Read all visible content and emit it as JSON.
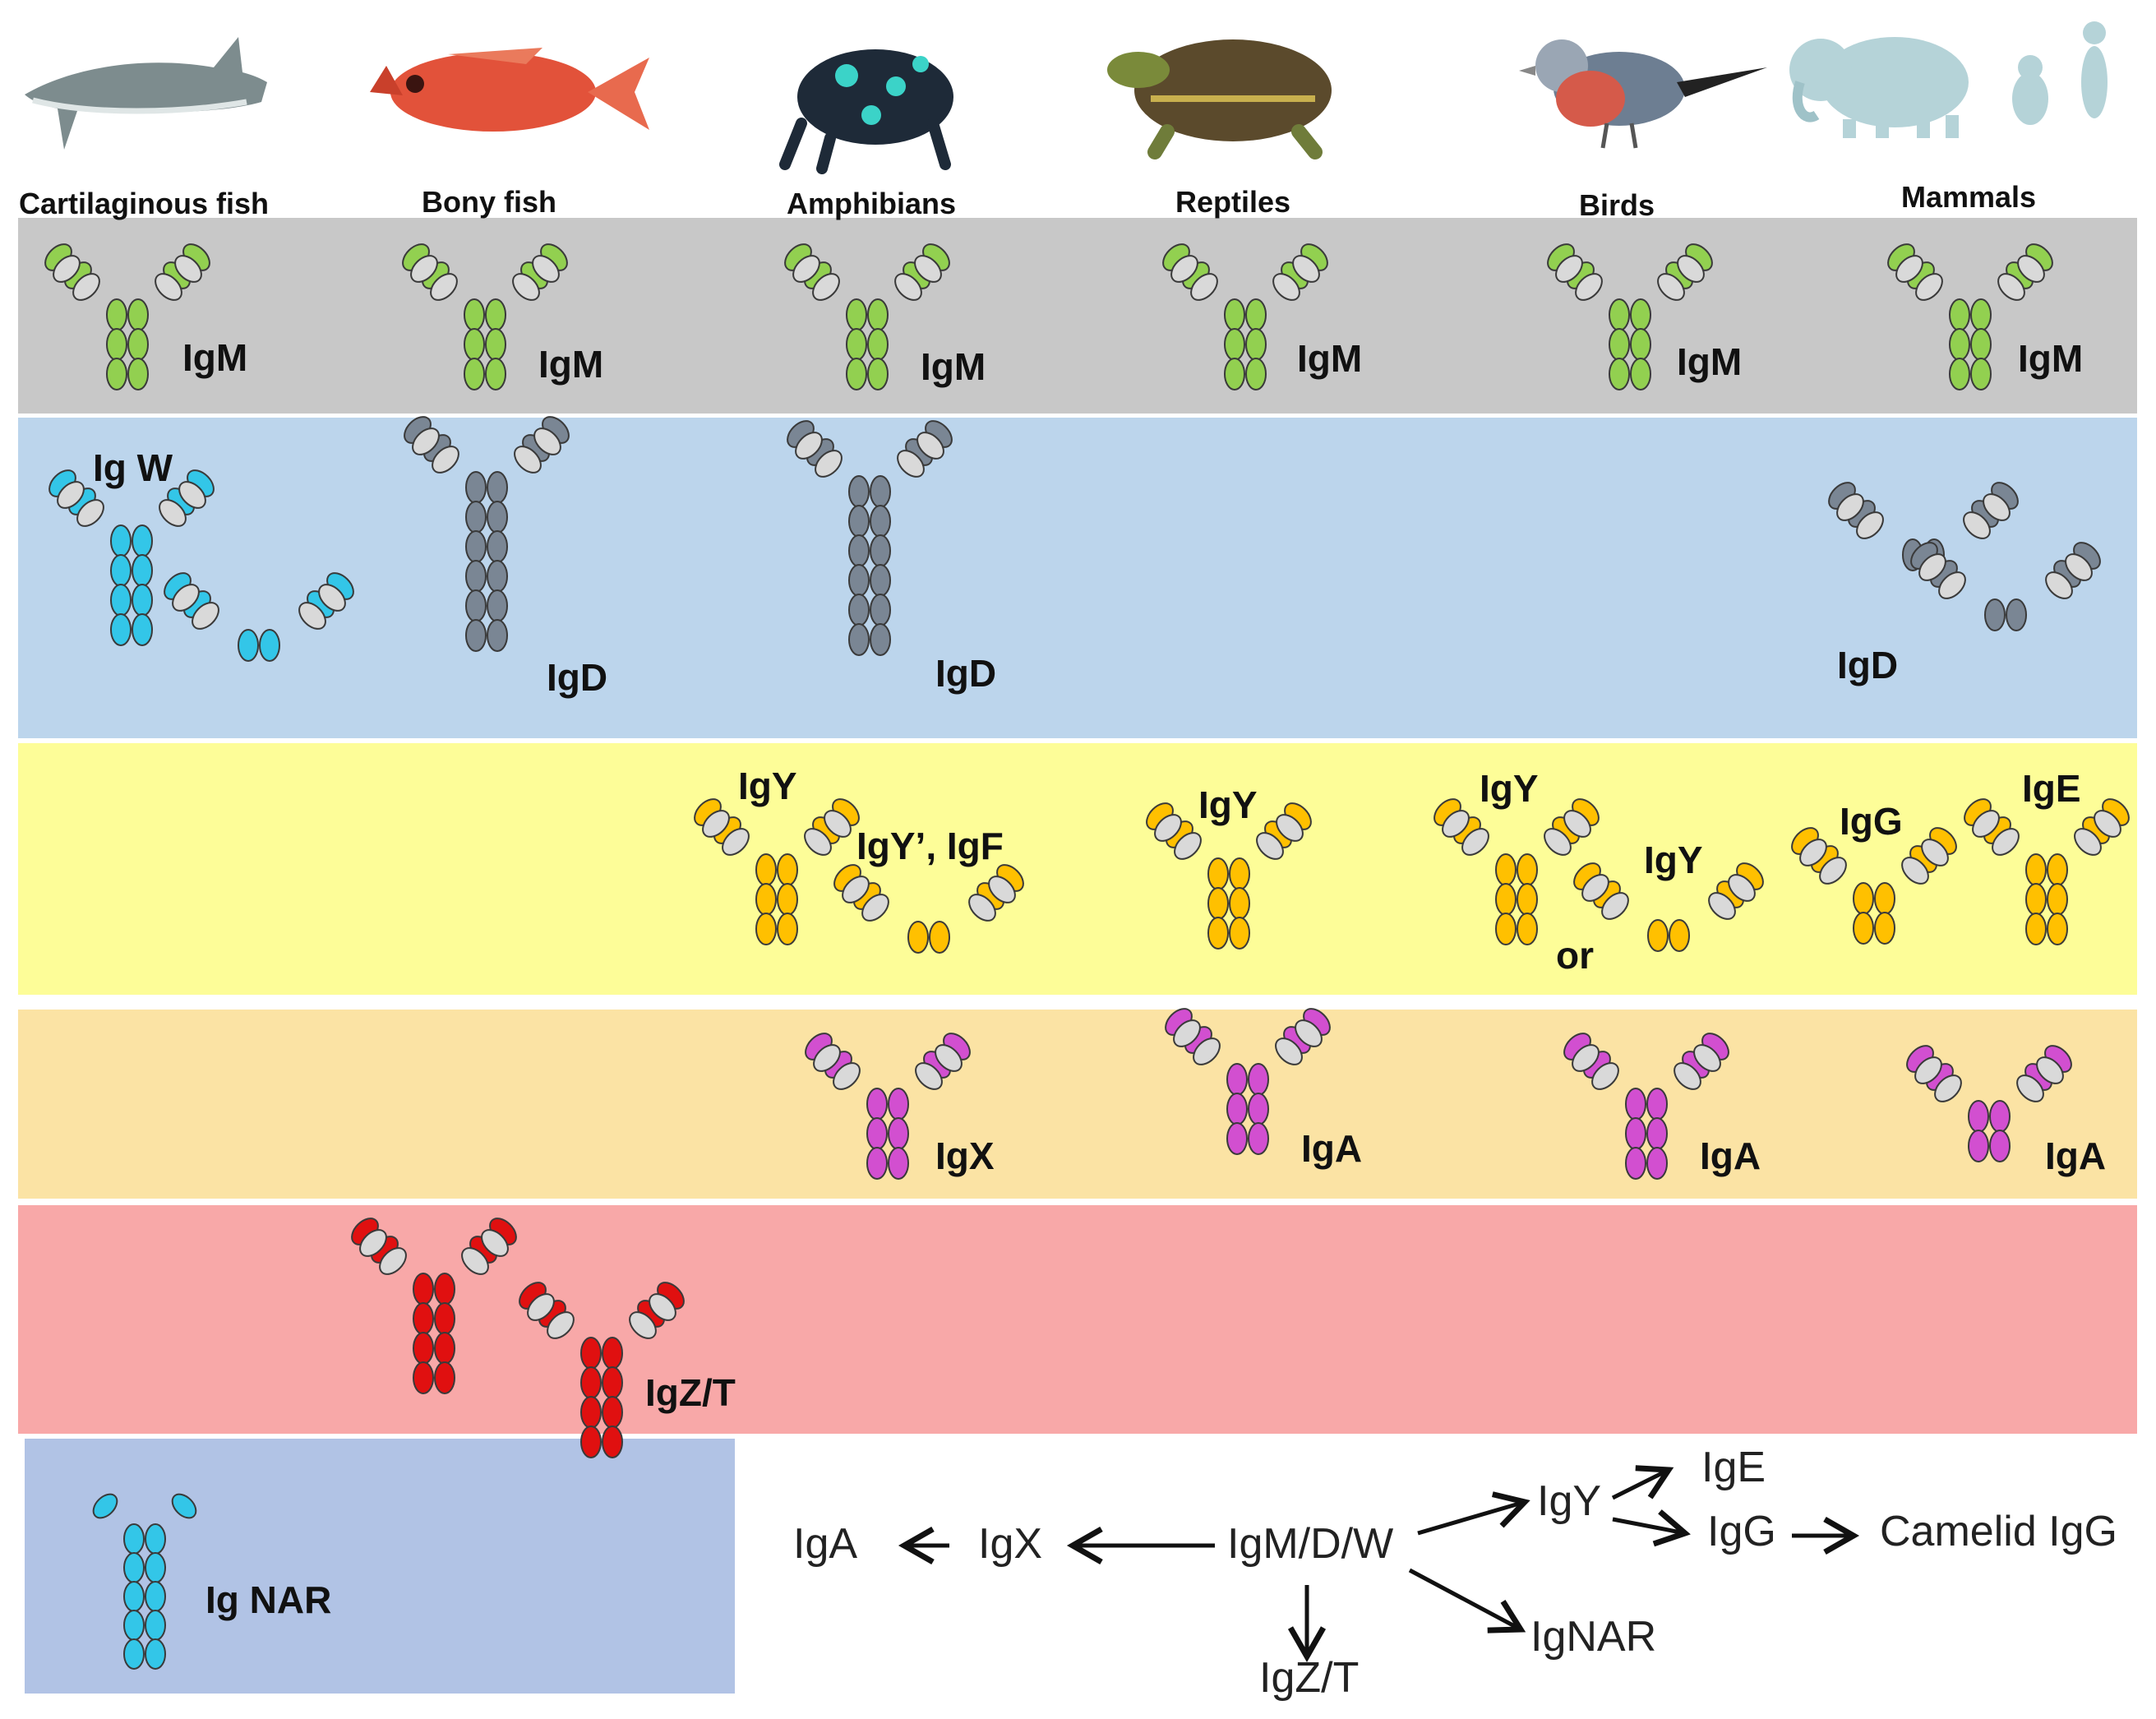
{
  "colors": {
    "row_igm": "#c8c8c8",
    "row_igd": "#bcd5ec",
    "row_igy": "#fdfd98",
    "row_iga": "#fbe3a4",
    "row_igz": "#f8a8a8",
    "row_ignar": "#b1c3e5",
    "domain_gray": "#d9d9d9",
    "igm_green": "#92d050",
    "cyan": "#33c6e8",
    "slate": "#7a8694",
    "orange": "#ffc000",
    "magenta": "#d24fd0",
    "red": "#e01010"
  },
  "animals": [
    {
      "label": "Cartilaginous fish",
      "icon": "shark-icon"
    },
    {
      "label": "Bony fish",
      "icon": "fish-icon"
    },
    {
      "label": "Amphibians",
      "icon": "frog-icon"
    },
    {
      "label": "Reptiles",
      "icon": "turtle-icon"
    },
    {
      "label": "Birds",
      "icon": "bird-icon"
    },
    {
      "label": "Mammals",
      "icon": "mammals-icon"
    }
  ],
  "labels": {
    "igm": "IgM",
    "igw": "Ig W",
    "igd": "IgD",
    "igy": "IgY",
    "igy_prime_igf": "IgY’, IgF",
    "or": "or",
    "igg": "IgG",
    "ige": "IgE",
    "igx": "IgX",
    "iga": "IgA",
    "igz_t": "IgZ/T",
    "ig_nar": "Ig NAR"
  },
  "flow": {
    "igm_d_w": "IgM/D/W",
    "igx": "IgX",
    "iga": "IgA",
    "igy": "IgY",
    "ige": "IgE",
    "igg": "IgG",
    "camelid_igg": "Camelid IgG",
    "ignar": "IgNAR",
    "igz_t": "IgZ/T"
  }
}
